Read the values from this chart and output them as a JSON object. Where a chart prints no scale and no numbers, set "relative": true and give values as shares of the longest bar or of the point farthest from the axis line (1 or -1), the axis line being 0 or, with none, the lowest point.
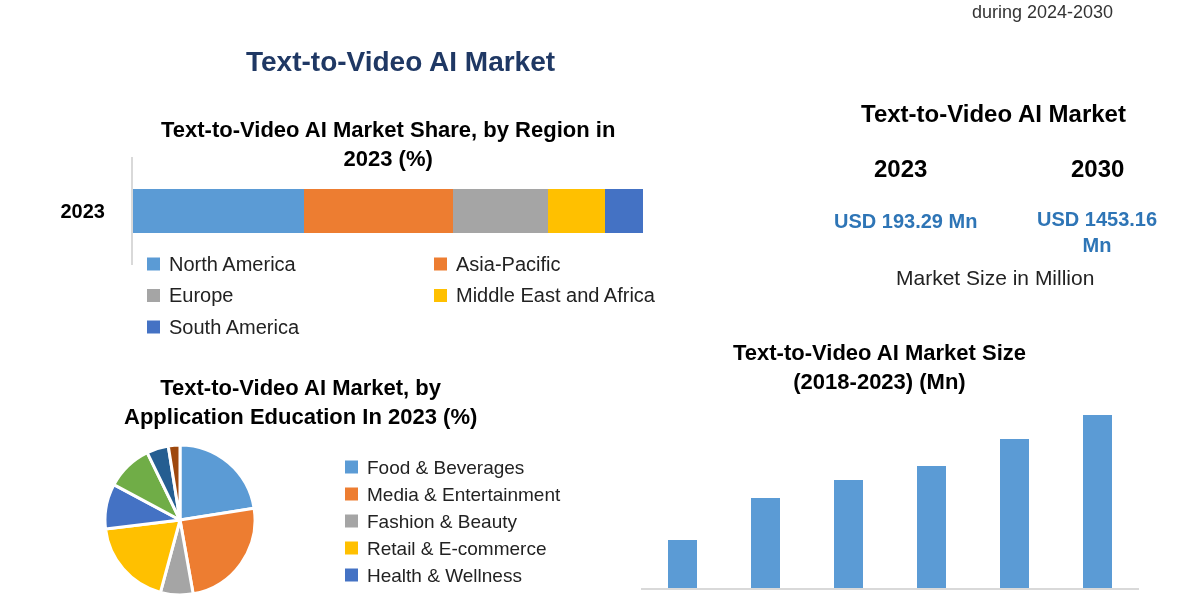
{
  "chart_data": [
    {
      "type": "other",
      "title": "Text-to-Video AI Market",
      "annotations": [
        "during 2024-2030"
      ]
    },
    {
      "type": "bar",
      "title": "Text-to-Video AI Market Share, by Region in 2023 (%)",
      "orientation": "horizontal",
      "stacked": true,
      "relative": true,
      "categories": [
        "2023"
      ],
      "legend": "bottom",
      "series": [
        {
          "name": "North America",
          "color": "#5b9bd5",
          "values": [
            0.335
          ]
        },
        {
          "name": "Asia-Pacific",
          "color": "#ed7d31",
          "values": [
            0.292
          ]
        },
        {
          "name": "Europe",
          "color": "#a5a5a5",
          "values": [
            0.186
          ]
        },
        {
          "name": "Middle East and Africa",
          "color": "#ffc000",
          "values": [
            0.112
          ]
        },
        {
          "name": "South America",
          "color": "#4472c4",
          "values": [
            0.075
          ]
        }
      ]
    },
    {
      "type": "other",
      "title": "Text-to-Video AI Market",
      "annotations": [
        "2023",
        "2030",
        "USD 193.29 Mn",
        "USD 1453.16 Mn",
        "Market Size in Million"
      ]
    },
    {
      "type": "pie",
      "title": "Text-to-Video AI Market, by Application Education In 2023 (%)",
      "legend": "right",
      "categories": [
        "Food & Beverages",
        "Media & Entertainment",
        "Fashion & Beauty",
        "Retail & E-commerce",
        "Health & Wellness",
        null,
        null,
        null
      ],
      "values": [
        22.5,
        24.7,
        7.0,
        18.9,
        9.7,
        10.0,
        4.7,
        2.5
      ],
      "colors": [
        "#5b9bd5",
        "#ed7d31",
        "#a5a5a5",
        "#ffc000",
        "#4472c4",
        "#70ad47",
        "#255e91",
        "#9e480e"
      ]
    },
    {
      "type": "bar",
      "title": "Text-to-Video AI Market Size (2018-2023) (Mn)",
      "relative": true,
      "categories": [
        null,
        null,
        null,
        null,
        null,
        null
      ],
      "values": [
        0.277,
        0.521,
        0.626,
        0.708,
        0.86,
        1.0
      ],
      "color": "#5b9bd5"
    }
  ]
}
